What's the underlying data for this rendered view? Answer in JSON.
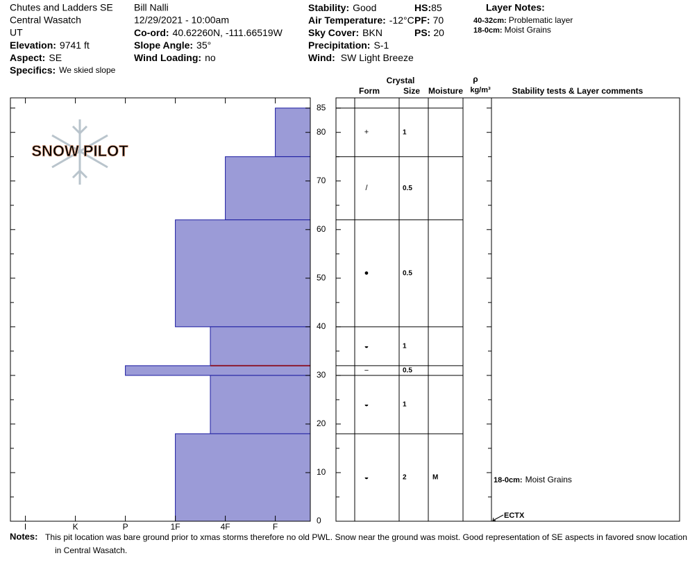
{
  "header": {
    "location": [
      "Chutes and Ladders SE",
      "Central Wasatch",
      "UT"
    ],
    "fields_left": [
      {
        "label": "Elevation:",
        "value": "9741 ft"
      },
      {
        "label": "Aspect:",
        "value": "SE"
      },
      {
        "label": "Specifics:",
        "value": "We skied slope"
      }
    ],
    "observer": "Bill Nalli",
    "datetime": "12/29/2021 - 10:00am",
    "fields_mid": [
      {
        "label": "Co-ord:",
        "value": "40.62260N, -111.66519W"
      },
      {
        "label": "Slope Angle:",
        "value": "35°"
      },
      {
        "label": "Wind Loading:",
        "value": "no"
      }
    ],
    "fields_conditions": [
      {
        "label": "Stability:",
        "value": "Good"
      },
      {
        "label": "Air Temperature:",
        "value": "-12°C"
      },
      {
        "label": "Sky Cover:",
        "value": "BKN"
      },
      {
        "label": "Precipitation:",
        "value": "S-1"
      },
      {
        "label": "Wind:",
        "value": "SW Light Breeze"
      }
    ],
    "fields_depth": [
      {
        "label": "HS:",
        "value": "85"
      },
      {
        "label": "PF:",
        "value": "70"
      },
      {
        "label": "PS:",
        "value": "20"
      }
    ],
    "layer_notes_title": "Layer Notes:",
    "layer_notes": [
      {
        "range": "40-32cm:",
        "text": "Problematic layer"
      },
      {
        "range": "18-0cm:",
        "text": "Moist Grains"
      }
    ]
  },
  "logo": "SNOW PILOT",
  "chart_data": {
    "type": "bar",
    "ylim": [
      0,
      87.1
    ],
    "yticks": [
      0,
      10,
      20,
      30,
      40,
      50,
      60,
      70,
      80,
      85
    ],
    "yminorticks": [
      5,
      15,
      25,
      35,
      45,
      55,
      65,
      75
    ],
    "xlim": [
      6.3,
      0.3
    ],
    "xticks": [
      {
        "value": 6,
        "label": "I"
      },
      {
        "value": 5,
        "label": "K"
      },
      {
        "value": 4,
        "label": "P"
      },
      {
        "value": 3,
        "label": "1F"
      },
      {
        "value": 2,
        "label": "4F"
      },
      {
        "value": 1,
        "label": "F"
      }
    ],
    "depth_top": [
      85,
      75,
      62,
      40,
      32,
      30,
      18
    ],
    "depth_bottom": [
      75,
      62,
      40,
      32,
      30,
      18,
      0
    ],
    "hardness": [
      1,
      2,
      3,
      2.3,
      4,
      2.3,
      3
    ],
    "color": "#9b9bd7",
    "edge_color": "#1a1aa0",
    "problematic_depth": 32,
    "problematic_color": "#8b1a30"
  },
  "grain_table": {
    "headers": {
      "crystal": "Crystal",
      "form": "Form",
      "size": "Size",
      "moisture": "Moisture",
      "density_symbol": "ρ",
      "density_unit": "kg/m³",
      "comments": "Stability tests & Layer comments"
    },
    "form": [
      "+",
      "/",
      "●",
      "◒",
      "−",
      "◒",
      "◒"
    ],
    "size": [
      "1",
      "0.5",
      "0.5",
      "1",
      "0.5",
      "1",
      "2"
    ],
    "moisture": [
      null,
      null,
      null,
      null,
      null,
      null,
      "M"
    ]
  },
  "layer_comments": [
    {
      "range": "18-0cm:",
      "text": "Moist Grains"
    }
  ],
  "stability_tests": [
    {
      "result": "ECTX",
      "depth": 0
    }
  ],
  "notes": {
    "label": "Notes:",
    "lines": [
      "This pit location was bare ground prior to xmas storms therefore no old PWL. Snow near the ground was moist. Good representation of SE aspects in favored snow location",
      "in Central Wasatch."
    ]
  }
}
